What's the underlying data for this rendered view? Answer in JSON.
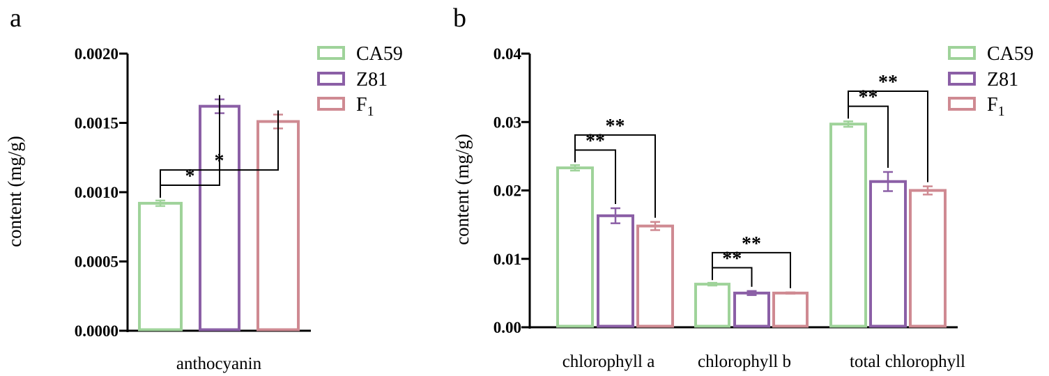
{
  "colors": {
    "CA59": "#9fd39a",
    "Z81": "#8b5fa6",
    "F1": "#cf8a92"
  },
  "chart_data": [
    {
      "type": "bar",
      "panel": "a",
      "xlabel": "",
      "ylabel": "content (mg/g)",
      "ylim": [
        0,
        0.002
      ],
      "yticks": [
        0,
        0.0005,
        0.001,
        0.0015,
        0.002
      ],
      "ytick_labels": [
        "0.0000",
        "0.0005",
        "0.0010",
        "0.0015",
        "0.0020"
      ],
      "categories": [
        "anthocyanin"
      ],
      "legend": [
        {
          "key": "CA59",
          "label": "CA59",
          "sub": ""
        },
        {
          "key": "Z81",
          "label": "Z81",
          "sub": ""
        },
        {
          "key": "F1",
          "label": "F",
          "sub": "1"
        }
      ],
      "series": [
        {
          "name": "CA59",
          "values": [
            0.00092
          ],
          "errors": [
            2e-05
          ]
        },
        {
          "name": "Z81",
          "values": [
            0.00162
          ],
          "errors": [
            5e-05
          ]
        },
        {
          "name": "F1",
          "values": [
            0.00151
          ],
          "errors": [
            5e-05
          ]
        }
      ],
      "annotations": [
        {
          "category": 0,
          "from": 0,
          "to": 1,
          "label": "*",
          "level": 1
        },
        {
          "category": 0,
          "from": 0,
          "to": 2,
          "label": "*",
          "level": 2
        }
      ]
    },
    {
      "type": "bar",
      "panel": "b",
      "xlabel": "",
      "ylabel": "content (mg/g)",
      "ylim": [
        0,
        0.04
      ],
      "yticks": [
        0,
        0.01,
        0.02,
        0.03,
        0.04
      ],
      "ytick_labels": [
        "0.00",
        "0.01",
        "0.02",
        "0.03",
        "0.04"
      ],
      "categories": [
        "chlorophyll a",
        "chlorophyll b",
        "total chlorophyll"
      ],
      "legend": [
        {
          "key": "CA59",
          "label": "CA59",
          "sub": ""
        },
        {
          "key": "Z81",
          "label": "Z81",
          "sub": ""
        },
        {
          "key": "F1",
          "label": "F",
          "sub": "1"
        }
      ],
      "series": [
        {
          "name": "CA59",
          "values": [
            0.0233,
            0.0063,
            0.0297
          ],
          "errors": [
            0.0004,
            0.0002,
            0.0004
          ]
        },
        {
          "name": "Z81",
          "values": [
            0.0163,
            0.005,
            0.0213
          ],
          "errors": [
            0.0011,
            0.0003,
            0.0014
          ]
        },
        {
          "name": "F1",
          "values": [
            0.0148,
            0.005,
            0.02
          ],
          "errors": [
            0.0006,
            0.0001,
            0.0006
          ]
        }
      ],
      "annotations": [
        {
          "category": 0,
          "from": 0,
          "to": 1,
          "label": "**",
          "level": 1
        },
        {
          "category": 0,
          "from": 0,
          "to": 2,
          "label": "**",
          "level": 2
        },
        {
          "category": 1,
          "from": 0,
          "to": 1,
          "label": "**",
          "level": 1
        },
        {
          "category": 1,
          "from": 0,
          "to": 2,
          "label": "**",
          "level": 2
        },
        {
          "category": 2,
          "from": 0,
          "to": 1,
          "label": "**",
          "level": 1
        },
        {
          "category": 2,
          "from": 0,
          "to": 2,
          "label": "**",
          "level": 2
        }
      ]
    }
  ]
}
